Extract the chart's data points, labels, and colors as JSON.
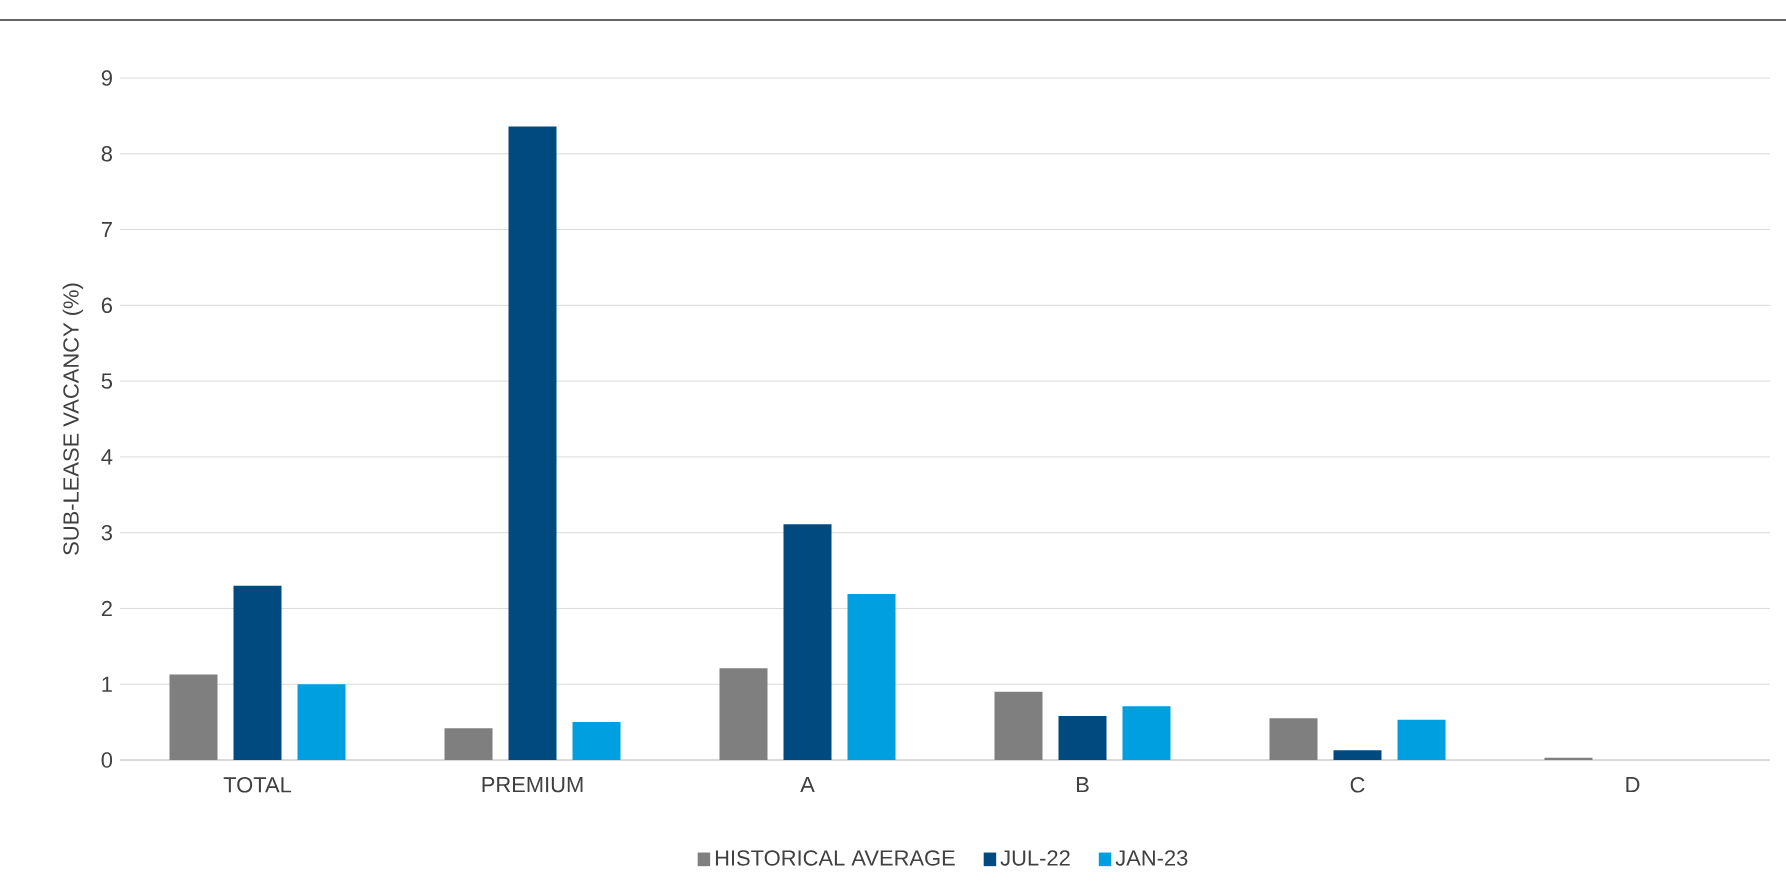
{
  "chart_data": {
    "type": "bar",
    "ylabel": "SUB-LEASE VACANCY (%)",
    "categories": [
      "TOTAL",
      "PREMIUM",
      "A",
      "B",
      "C",
      "D"
    ],
    "series": [
      {
        "name": "HISTORICAL AVERAGE",
        "color": "#7f7f7f",
        "values": [
          1.13,
          0.42,
          1.21,
          0.9,
          0.55,
          0.03
        ]
      },
      {
        "name": "JUL-22",
        "color": "#004a80",
        "values": [
          2.3,
          8.36,
          3.11,
          0.58,
          0.13,
          0
        ]
      },
      {
        "name": "JAN-23",
        "color": "#00a0e0",
        "values": [
          1.0,
          0.5,
          2.19,
          0.71,
          0.53,
          0
        ]
      }
    ],
    "ylim": [
      0,
      9
    ],
    "yticks": [
      0,
      1,
      2,
      3,
      4,
      5,
      6,
      7,
      8,
      9
    ],
    "grid": "y",
    "legend": "bottom"
  }
}
